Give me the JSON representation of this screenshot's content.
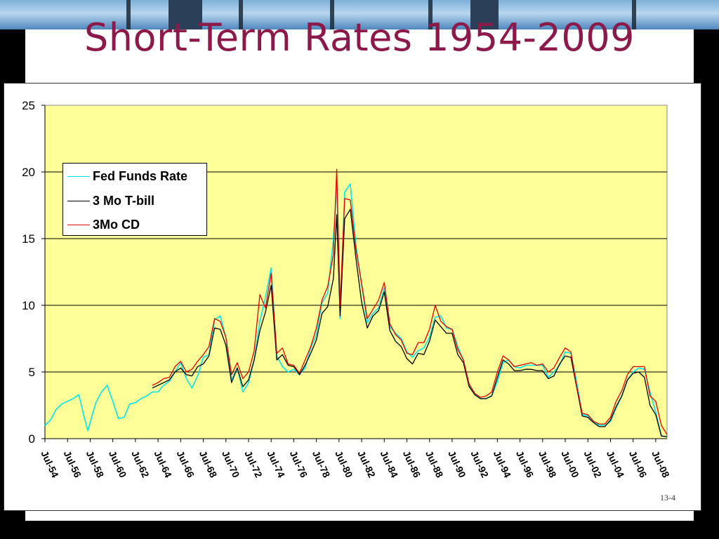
{
  "slide": {
    "title": "Short-Term Rates 1954-2009",
    "slide_number": "13-4"
  },
  "colors": {
    "title": "#8b1a4a",
    "plot_background": "#ffff99",
    "fed_funds": "#00e5ee",
    "tbill": "#000000",
    "cd": "#e00000"
  },
  "chart_data": {
    "type": "line",
    "title": "",
    "xlabel": "",
    "ylabel": "",
    "ylim": [
      0,
      25
    ],
    "yticks": [
      0,
      5,
      10,
      15,
      20,
      25
    ],
    "grid": "horizontal",
    "legend_position": "upper-left",
    "x_tick_labels": [
      "Jul-54",
      "Jul-56",
      "Jul-58",
      "Jul-60",
      "Jul-62",
      "Jul-64",
      "Jul-66",
      "Jul-68",
      "Jul-70",
      "Jul-72",
      "Jul-74",
      "Jul-76",
      "Jul-78",
      "Jul-80",
      "Jul-82",
      "Jul-84",
      "Jul-86",
      "Jul-88",
      "Jul-90",
      "Jul-92",
      "Jul-94",
      "Jul-96",
      "Jul-98",
      "Jul-00",
      "Jul-02",
      "Jul-04",
      "Jul-06",
      "Jul-08"
    ],
    "series": [
      {
        "name": "Fed Funds Rate",
        "color": "#00e5ee",
        "x": [
          1954.5,
          1955.0,
          1955.5,
          1956.0,
          1956.5,
          1957.0,
          1957.5,
          1958.0,
          1958.3,
          1958.6,
          1959.0,
          1959.5,
          1960.0,
          1960.5,
          1961.0,
          1961.5,
          1962.0,
          1962.5,
          1963.0,
          1963.5,
          1964.0,
          1964.5,
          1965.0,
          1965.5,
          1966.0,
          1966.5,
          1967.0,
          1967.5,
          1968.0,
          1968.5,
          1969.0,
          1969.5,
          1970.0,
          1970.5,
          1971.0,
          1971.5,
          1972.0,
          1972.5,
          1973.0,
          1973.5,
          1974.0,
          1974.5,
          1975.0,
          1975.5,
          1976.0,
          1976.5,
          1977.0,
          1977.5,
          1978.0,
          1978.5,
          1979.0,
          1979.5,
          1980.0,
          1980.3,
          1980.6,
          1981.0,
          1981.5,
          1982.0,
          1982.5,
          1983.0,
          1983.5,
          1984.0,
          1984.5,
          1985.0,
          1985.5,
          1986.0,
          1986.5,
          1987.0,
          1987.5,
          1988.0,
          1988.5,
          1989.0,
          1989.5,
          1990.0,
          1990.5,
          1991.0,
          1991.5,
          1992.0,
          1992.5,
          1993.0,
          1993.5,
          1994.0,
          1994.5,
          1995.0,
          1995.5,
          1996.0,
          1996.5,
          1997.0,
          1997.5,
          1998.0,
          1998.5,
          1999.0,
          1999.5,
          2000.0,
          2000.5,
          2001.0,
          2001.5,
          2002.0,
          2002.5,
          2003.0,
          2003.5,
          2004.0,
          2004.5,
          2005.0,
          2005.5,
          2006.0,
          2006.5,
          2007.0,
          2007.5,
          2008.0,
          2008.5,
          2009.0,
          2009.5
        ],
        "y": [
          1.0,
          1.4,
          2.2,
          2.6,
          2.8,
          3.0,
          3.3,
          1.5,
          0.6,
          1.5,
          2.7,
          3.5,
          4.0,
          2.8,
          1.5,
          1.6,
          2.6,
          2.7,
          3.0,
          3.2,
          3.5,
          3.5,
          4.0,
          4.3,
          5.0,
          5.7,
          4.5,
          3.8,
          4.7,
          6.1,
          6.3,
          8.9,
          9.2,
          7.6,
          4.4,
          5.3,
          3.5,
          4.2,
          5.9,
          8.8,
          10.6,
          12.8,
          6.2,
          5.4,
          5.0,
          5.2,
          4.8,
          5.3,
          6.8,
          7.8,
          10.2,
          10.9,
          15.0,
          19.0,
          9.0,
          18.5,
          19.1,
          14.5,
          11.5,
          8.7,
          9.4,
          9.8,
          11.3,
          8.4,
          7.9,
          7.5,
          6.5,
          6.1,
          6.6,
          6.8,
          7.6,
          9.1,
          9.2,
          8.3,
          8.2,
          6.9,
          5.9,
          4.0,
          3.3,
          3.0,
          3.0,
          3.2,
          4.3,
          5.7,
          5.9,
          5.4,
          5.3,
          5.5,
          5.5,
          5.5,
          5.5,
          4.6,
          5.0,
          5.5,
          6.5,
          6.4,
          4.3,
          1.8,
          1.7,
          1.3,
          1.0,
          1.0,
          1.3,
          2.3,
          3.2,
          4.4,
          5.0,
          5.3,
          5.2,
          3.5,
          2.0,
          0.2,
          0.15
        ]
      },
      {
        "name": "3 Mo T-bill",
        "color": "#000000",
        "x": [
          1964.0,
          1964.5,
          1965.0,
          1965.5,
          1966.0,
          1966.5,
          1967.0,
          1967.5,
          1968.0,
          1968.5,
          1969.0,
          1969.5,
          1970.0,
          1970.5,
          1971.0,
          1971.5,
          1972.0,
          1972.5,
          1973.0,
          1973.5,
          1974.0,
          1974.5,
          1975.0,
          1975.5,
          1976.0,
          1976.5,
          1977.0,
          1977.5,
          1978.0,
          1978.5,
          1979.0,
          1979.5,
          1980.0,
          1980.3,
          1980.6,
          1981.0,
          1981.5,
          1982.0,
          1982.5,
          1983.0,
          1983.5,
          1984.0,
          1984.5,
          1985.0,
          1985.5,
          1986.0,
          1986.5,
          1987.0,
          1987.5,
          1988.0,
          1988.5,
          1989.0,
          1989.5,
          1990.0,
          1990.5,
          1991.0,
          1991.5,
          1992.0,
          1992.5,
          1993.0,
          1993.5,
          1994.0,
          1994.5,
          1995.0,
          1995.5,
          1996.0,
          1996.5,
          1997.0,
          1997.5,
          1998.0,
          1998.5,
          1999.0,
          1999.5,
          2000.0,
          2000.5,
          2001.0,
          2001.5,
          2002.0,
          2002.5,
          2003.0,
          2003.5,
          2004.0,
          2004.5,
          2005.0,
          2005.5,
          2006.0,
          2006.5,
          2007.0,
          2007.5,
          2008.0,
          2008.5,
          2009.0,
          2009.5
        ],
        "y": [
          3.8,
          4.0,
          4.2,
          4.4,
          5.0,
          5.3,
          4.8,
          4.7,
          5.4,
          5.6,
          6.2,
          8.3,
          8.2,
          7.0,
          4.2,
          5.3,
          3.9,
          4.4,
          5.9,
          8.1,
          9.5,
          11.5,
          5.9,
          6.3,
          5.5,
          5.4,
          4.8,
          5.5,
          6.4,
          7.4,
          9.4,
          9.9,
          12.0,
          16.8,
          9.2,
          16.5,
          17.2,
          13.5,
          10.2,
          8.3,
          9.2,
          9.6,
          11.0,
          8.1,
          7.3,
          6.9,
          6.0,
          5.6,
          6.4,
          6.3,
          7.3,
          8.9,
          8.4,
          7.9,
          7.9,
          6.3,
          5.7,
          3.9,
          3.3,
          3.0,
          3.0,
          3.2,
          4.6,
          5.9,
          5.6,
          5.1,
          5.1,
          5.2,
          5.2,
          5.1,
          5.1,
          4.5,
          4.7,
          5.6,
          6.2,
          6.1,
          3.9,
          1.7,
          1.6,
          1.2,
          0.9,
          0.9,
          1.4,
          2.4,
          3.2,
          4.4,
          4.9,
          5.0,
          4.6,
          2.5,
          1.8,
          0.2,
          0.15
        ]
      },
      {
        "name": "3Mo CD",
        "color": "#e00000",
        "x": [
          1964.0,
          1964.5,
          1965.0,
          1965.5,
          1966.0,
          1966.5,
          1967.0,
          1967.5,
          1968.0,
          1968.5,
          1969.0,
          1969.5,
          1970.0,
          1970.5,
          1971.0,
          1971.5,
          1972.0,
          1972.5,
          1973.0,
          1973.5,
          1974.0,
          1974.5,
          1975.0,
          1975.5,
          1976.0,
          1976.5,
          1977.0,
          1977.5,
          1978.0,
          1978.5,
          1979.0,
          1979.5,
          1980.0,
          1980.3,
          1980.6,
          1981.0,
          1981.5,
          1982.0,
          1982.5,
          1983.0,
          1983.5,
          1984.0,
          1984.5,
          1985.0,
          1985.5,
          1986.0,
          1986.5,
          1987.0,
          1987.5,
          1988.0,
          1988.5,
          1989.0,
          1989.5,
          1990.0,
          1990.5,
          1991.0,
          1991.5,
          1992.0,
          1992.5,
          1993.0,
          1993.5,
          1994.0,
          1994.5,
          1995.0,
          1995.5,
          1996.0,
          1996.5,
          1997.0,
          1997.5,
          1998.0,
          1998.5,
          1999.0,
          1999.5,
          2000.0,
          2000.5,
          2001.0,
          2001.5,
          2002.0,
          2002.5,
          2003.0,
          2003.5,
          2004.0,
          2004.5,
          2005.0,
          2005.5,
          2006.0,
          2006.5,
          2007.0,
          2007.5,
          2008.0,
          2008.5,
          2009.0,
          2009.5
        ],
        "y": [
          4.0,
          4.2,
          4.5,
          4.6,
          5.4,
          5.8,
          5.0,
          5.2,
          5.8,
          6.3,
          6.9,
          9.0,
          8.8,
          7.6,
          4.8,
          5.7,
          4.5,
          5.0,
          6.6,
          10.8,
          9.8,
          12.4,
          6.4,
          6.8,
          5.6,
          5.5,
          4.9,
          5.9,
          6.9,
          8.3,
          10.4,
          11.4,
          13.8,
          20.2,
          10.0,
          18.0,
          17.9,
          14.2,
          11.6,
          9.0,
          9.7,
          10.4,
          11.7,
          8.6,
          7.8,
          7.4,
          6.4,
          6.3,
          7.2,
          7.2,
          8.2,
          10.0,
          8.8,
          8.4,
          8.2,
          6.7,
          5.9,
          4.1,
          3.4,
          3.1,
          3.2,
          3.5,
          5.0,
          6.2,
          5.9,
          5.4,
          5.5,
          5.6,
          5.7,
          5.5,
          5.6,
          5.0,
          5.3,
          6.1,
          6.8,
          6.5,
          4.0,
          1.9,
          1.8,
          1.3,
          1.1,
          1.1,
          1.6,
          2.8,
          3.6,
          4.8,
          5.4,
          5.4,
          5.4,
          3.2,
          2.8,
          1.0,
          0.3
        ]
      }
    ]
  }
}
